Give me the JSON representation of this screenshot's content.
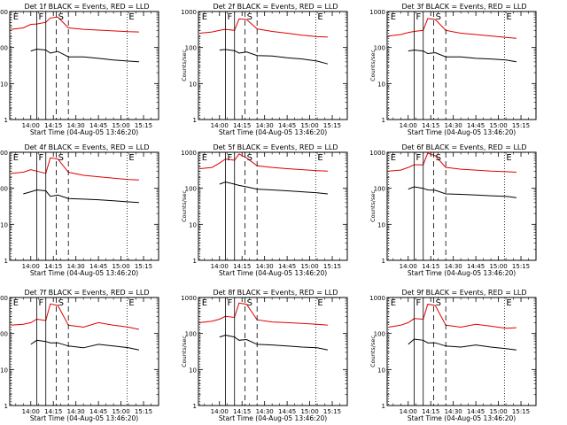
{
  "chart_data": {
    "type": "line",
    "panel_common": {
      "ylabel": "Counts/sec",
      "xlabel": "Start Time (04-Aug-05 13:46:20)",
      "xlim": [
        "13:46",
        "15:25"
      ],
      "x_ticks": [
        "14:00",
        "14:15",
        "14:30",
        "14:45",
        "15:00",
        "15:15"
      ],
      "yscale": "log",
      "ylim": [
        1,
        1000
      ],
      "y_ticks": [
        "1",
        "10",
        "100",
        "1000"
      ],
      "markers": [
        {
          "label": "E",
          "time": "13:47",
          "style": "dotted"
        },
        {
          "label": "F",
          "time": "14:04",
          "style": "solid"
        },
        {
          "label": "S",
          "time": "14:17",
          "style": "dashed"
        },
        {
          "label": "E",
          "time": "15:04",
          "style": "dotted"
        }
      ],
      "extra_lines": [
        {
          "time": "14:10",
          "style": "solid"
        },
        {
          "time": "14:25",
          "style": "dashed"
        }
      ],
      "series_colors": {
        "events": "#000000",
        "lld": "#e00000"
      }
    },
    "panels": [
      {
        "title": "Det 1f BLACK = Events, RED = LLD",
        "x": [
          "13:47",
          "13:55",
          "14:00",
          "14:04",
          "14:10",
          "14:13",
          "14:18",
          "14:25",
          "14:35",
          "14:45",
          "14:55",
          "15:05",
          "15:12"
        ],
        "series": [
          {
            "name": "LLD",
            "values": [
              320,
              350,
              440,
              450,
              500,
              660,
              700,
              350,
              320,
              305,
              290,
              275,
              270
            ]
          },
          {
            "name": "Events",
            "values": [
              null,
              null,
              80,
              90,
              85,
              70,
              78,
              55,
              55,
              50,
              45,
              42,
              40
            ]
          }
        ]
      },
      {
        "title": "Det 2f BLACK = Events, RED = LLD",
        "x": [
          "13:47",
          "13:55",
          "14:00",
          "14:04",
          "14:10",
          "14:13",
          "14:18",
          "14:25",
          "14:35",
          "14:45",
          "14:55",
          "15:05",
          "15:12"
        ],
        "series": [
          {
            "name": "LLD",
            "values": [
              250,
              270,
              300,
              320,
              300,
              620,
              600,
              330,
              280,
              250,
              220,
              200,
              195
            ]
          },
          {
            "name": "Events",
            "values": [
              null,
              null,
              85,
              88,
              82,
              70,
              75,
              60,
              58,
              52,
              48,
              42,
              35
            ]
          }
        ]
      },
      {
        "title": "Det 3f BLACK = Events, RED = LLD",
        "x": [
          "13:47",
          "13:55",
          "14:00",
          "14:04",
          "14:10",
          "14:13",
          "14:18",
          "14:25",
          "14:35",
          "14:45",
          "14:55",
          "15:05",
          "15:12"
        ],
        "series": [
          {
            "name": "LLD",
            "values": [
              210,
              230,
              260,
              280,
              300,
              640,
              600,
              300,
              250,
              230,
              210,
              190,
              180
            ]
          },
          {
            "name": "Events",
            "values": [
              null,
              null,
              80,
              85,
              80,
              68,
              72,
              55,
              55,
              50,
              48,
              45,
              40
            ]
          }
        ]
      },
      {
        "title": "Det 4f BLACK = Events, RED = LLD",
        "x": [
          "13:47",
          "13:55",
          "14:00",
          "14:04",
          "14:10",
          "14:13",
          "14:18",
          "14:25",
          "14:35",
          "14:45",
          "14:55",
          "15:05",
          "15:12"
        ],
        "series": [
          {
            "name": "LLD",
            "values": [
              260,
              280,
              330,
              300,
              260,
              700,
              650,
              280,
              230,
              210,
              190,
              175,
              170
            ]
          },
          {
            "name": "Events",
            "values": [
              null,
              70,
              80,
              90,
              85,
              60,
              65,
              52,
              50,
              48,
              45,
              42,
              40
            ]
          }
        ]
      },
      {
        "title": "Det 5f BLACK = Events, RED = LLD",
        "x": [
          "13:47",
          "13:55",
          "14:00",
          "14:04",
          "14:10",
          "14:13",
          "14:18",
          "14:25",
          "14:35",
          "14:45",
          "14:55",
          "15:05",
          "15:12"
        ],
        "series": [
          {
            "name": "LLD",
            "values": [
              350,
              380,
              500,
              650,
              600,
              900,
              700,
              420,
              380,
              350,
              330,
              310,
              300
            ]
          },
          {
            "name": "Events",
            "values": [
              null,
              null,
              130,
              150,
              130,
              120,
              110,
              95,
              90,
              85,
              80,
              75,
              70
            ]
          }
        ]
      },
      {
        "title": "Det 6f BLACK = Events, RED = LLD",
        "x": [
          "13:47",
          "13:55",
          "14:00",
          "14:04",
          "14:10",
          "14:13",
          "14:18",
          "14:25",
          "14:35",
          "14:45",
          "14:55",
          "15:05",
          "15:12"
        ],
        "series": [
          {
            "name": "LLD",
            "values": [
              300,
              320,
              380,
              450,
              450,
              950,
              800,
              380,
              340,
              320,
              300,
              290,
              280
            ]
          },
          {
            "name": "Events",
            "values": [
              null,
              null,
              95,
              110,
              100,
              90,
              88,
              70,
              68,
              65,
              62,
              60,
              55
            ]
          }
        ]
      },
      {
        "title": "Det 7f BLACK = Events, RED = LLD",
        "x": [
          "13:47",
          "13:55",
          "14:00",
          "14:04",
          "14:10",
          "14:13",
          "14:18",
          "14:25",
          "14:35",
          "14:45",
          "14:55",
          "15:05",
          "15:12"
        ],
        "series": [
          {
            "name": "LLD",
            "values": [
              170,
              180,
              200,
              250,
              230,
              660,
              600,
              170,
              150,
              200,
              170,
              150,
              130
            ]
          },
          {
            "name": "Events",
            "values": [
              null,
              null,
              50,
              65,
              60,
              55,
              55,
              45,
              40,
              50,
              45,
              40,
              35
            ]
          }
        ]
      },
      {
        "title": "Det 8f BLACK = Events, RED = LLD",
        "x": [
          "13:47",
          "13:55",
          "14:00",
          "14:04",
          "14:10",
          "14:13",
          "14:18",
          "14:25",
          "14:35",
          "14:45",
          "14:55",
          "15:05",
          "15:12"
        ],
        "series": [
          {
            "name": "LLD",
            "values": [
              200,
              220,
              250,
              300,
              280,
              700,
              650,
              240,
              210,
              200,
              190,
              180,
              170
            ]
          },
          {
            "name": "Events",
            "values": [
              null,
              null,
              80,
              90,
              80,
              65,
              68,
              50,
              48,
              45,
              42,
              40,
              35
            ]
          }
        ]
      },
      {
        "title": "Det 9f BLACK = Events, RED = LLD",
        "x": [
          "13:47",
          "13:55",
          "14:00",
          "14:04",
          "14:10",
          "14:13",
          "14:18",
          "14:25",
          "14:35",
          "14:45",
          "14:55",
          "15:05",
          "15:12"
        ],
        "series": [
          {
            "name": "LLD",
            "values": [
              150,
              170,
              200,
              260,
              250,
              650,
              600,
              170,
              150,
              180,
              160,
              140,
              145
            ]
          },
          {
            "name": "Events",
            "values": [
              null,
              null,
              50,
              70,
              65,
              55,
              55,
              45,
              42,
              48,
              42,
              38,
              35
            ]
          }
        ]
      }
    ]
  }
}
